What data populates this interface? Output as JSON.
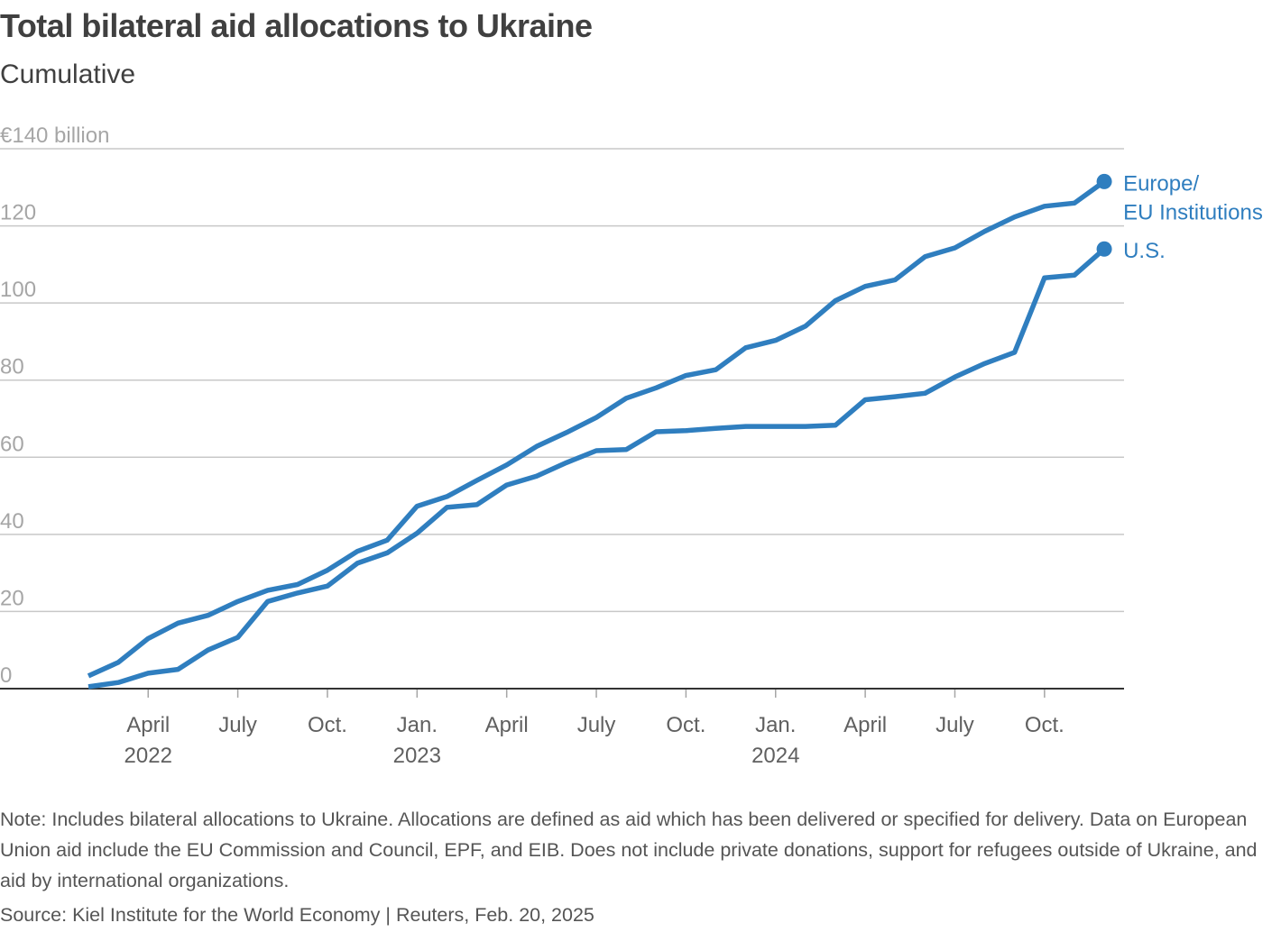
{
  "header": {
    "title": "Total bilateral aid allocations to Ukraine",
    "subtitle": "Cumulative"
  },
  "footer": {
    "note": "Note: Includes bilateral allocations to Ukraine. Allocations are defined as aid which has been delivered or specified for delivery. Data on European Union aid include the EU Commission and Council, EPF, and EIB. Does not include private donations, support for refugees outside of Ukraine, and aid by international organizations.",
    "source": "Source: Kiel Institute for the World Economy | Reuters, Feb. 20, 2025"
  },
  "colors": {
    "series": "#2f7ebf",
    "grid": "#c8c8c8",
    "axis": "#333333",
    "tick_label": "#a6a6a6",
    "x_label": "#606060"
  },
  "chart_data": {
    "type": "line",
    "title": "Total bilateral aid allocations to Ukraine",
    "subtitle": "Cumulative",
    "xlabel": "",
    "ylabel": "€ billion",
    "ylim": [
      0,
      140
    ],
    "y_ticks": [
      0,
      20,
      40,
      60,
      80,
      100,
      120,
      140
    ],
    "y_tick_labels": [
      "0",
      "20",
      "40",
      "60",
      "80",
      "100",
      "120",
      "€140 billion"
    ],
    "grid": true,
    "legend": "direct labels at line ends (right)",
    "x": [
      "2022-02",
      "2022-03",
      "2022-04",
      "2022-05",
      "2022-06",
      "2022-07",
      "2022-08",
      "2022-09",
      "2022-10",
      "2022-11",
      "2022-12",
      "2023-01",
      "2023-02",
      "2023-03",
      "2023-04",
      "2023-05",
      "2023-06",
      "2023-07",
      "2023-08",
      "2023-09",
      "2023-10",
      "2023-11",
      "2023-12",
      "2024-01",
      "2024-02",
      "2024-03",
      "2024-04",
      "2024-05",
      "2024-06",
      "2024-07",
      "2024-08",
      "2024-09",
      "2024-10",
      "2024-11",
      "2024-12"
    ],
    "x_ticks": [
      {
        "month": "2022-04",
        "label": "April",
        "year": "2022"
      },
      {
        "month": "2022-07",
        "label": "July",
        "year": ""
      },
      {
        "month": "2022-10",
        "label": "Oct.",
        "year": ""
      },
      {
        "month": "2023-01",
        "label": "Jan.",
        "year": "2023"
      },
      {
        "month": "2023-04",
        "label": "April",
        "year": ""
      },
      {
        "month": "2023-07",
        "label": "July",
        "year": ""
      },
      {
        "month": "2023-10",
        "label": "Oct.",
        "year": ""
      },
      {
        "month": "2024-01",
        "label": "Jan.",
        "year": "2024"
      },
      {
        "month": "2024-04",
        "label": "April",
        "year": ""
      },
      {
        "month": "2024-07",
        "label": "July",
        "year": ""
      },
      {
        "month": "2024-10",
        "label": "Oct.",
        "year": ""
      }
    ],
    "series": [
      {
        "name": "Europe/ EU Institutions",
        "label_lines": [
          "Europe/",
          "EU Institutions"
        ],
        "values": [
          3.3,
          6.8,
          13,
          17,
          19,
          22.6,
          25.5,
          27,
          30.7,
          35.6,
          38.5,
          47.3,
          49.8,
          54,
          58,
          62.8,
          66.4,
          70.3,
          75.3,
          78,
          81.2,
          82.7,
          88.4,
          90.3,
          94,
          100.6,
          104.3,
          106,
          112,
          114.3,
          118.6,
          122.3,
          125.1,
          125.9,
          131.5
        ]
      },
      {
        "name": "U.S.",
        "label_lines": [
          "U.S."
        ],
        "values": [
          0.5,
          1.6,
          4,
          5,
          10,
          13.3,
          22.6,
          24.8,
          26.6,
          32.5,
          35.2,
          40.3,
          47,
          47.7,
          52.8,
          55.1,
          58.6,
          61.7,
          62,
          66.6,
          66.9,
          67.5,
          68,
          68,
          68,
          68.3,
          74.9,
          75.7,
          76.6,
          80.8,
          84.3,
          87.2,
          106.5,
          107.2,
          114
        ]
      }
    ]
  }
}
